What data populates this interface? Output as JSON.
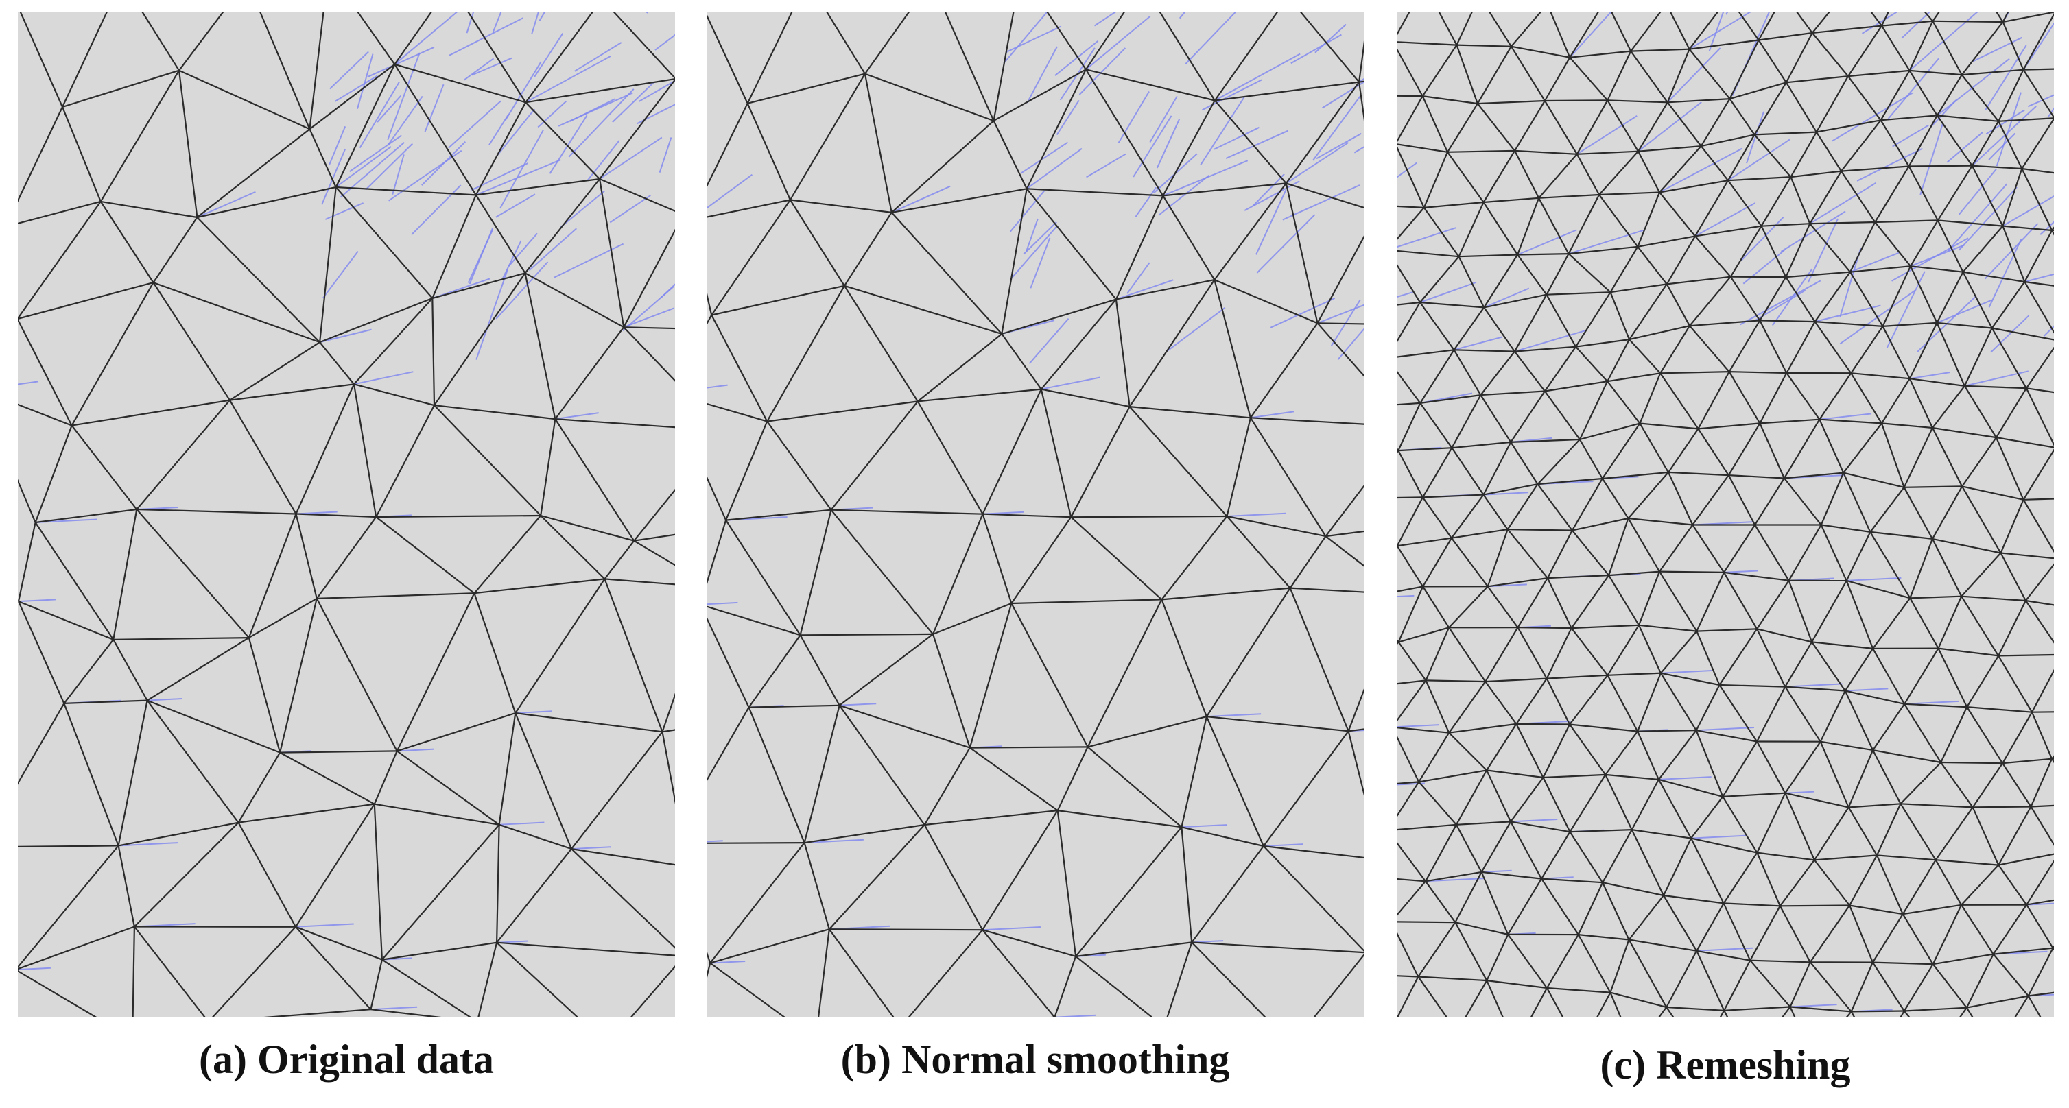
{
  "figure": {
    "panels": [
      {
        "id": "a",
        "caption": "(a) Original data",
        "method": "original"
      },
      {
        "id": "b",
        "caption": "(b) Normal smoothing",
        "method": "normal-smoothing"
      },
      {
        "id": "c",
        "caption": "(c) Remeshing",
        "method": "remeshing"
      }
    ]
  },
  "colors": {
    "panel_background": "#d9d9d9",
    "mesh_edges": "#2b2b2b",
    "normal_lines": "#7f86f0",
    "caption_text": "#111111"
  }
}
